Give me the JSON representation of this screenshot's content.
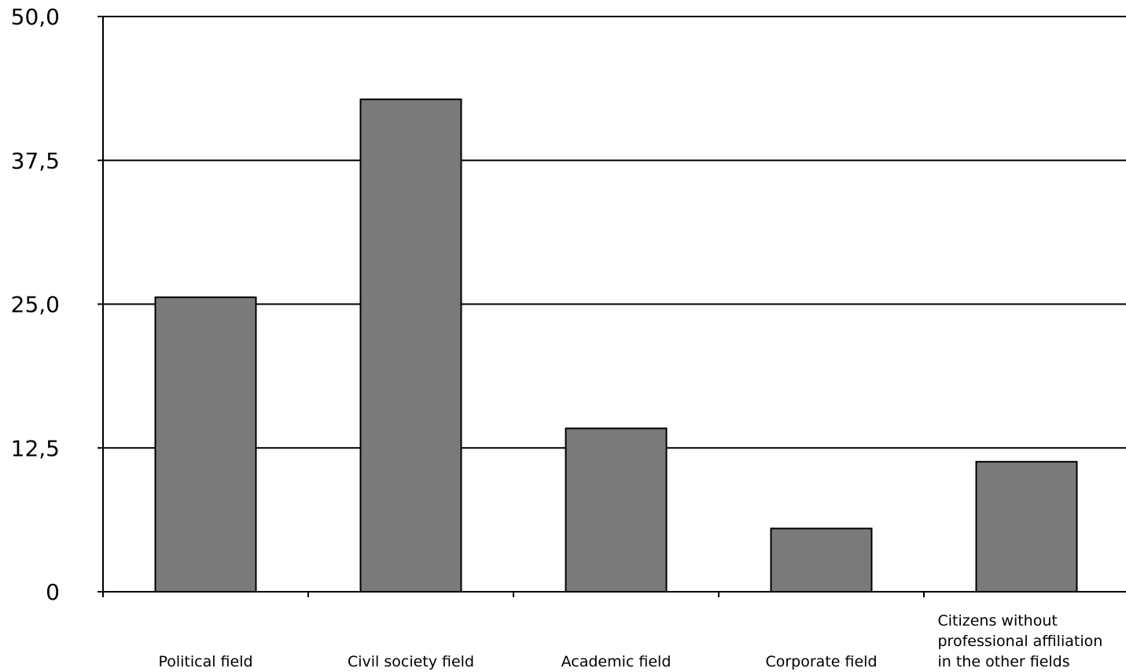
{
  "chart_data": {
    "type": "bar",
    "title": "",
    "xlabel": "",
    "ylabel": "",
    "categories": [
      "Political field",
      "Civil society field",
      "Academic field",
      "Corporate field",
      "Citizens without professional affiliation in the other fields"
    ],
    "category_label_lines": [
      [
        "Political field"
      ],
      [
        "Civil society field"
      ],
      [
        "Academic field"
      ],
      [
        "Corporate field"
      ],
      [
        "Citizens without",
        "professional affiliation",
        "in the other fields"
      ]
    ],
    "values": [
      25.6,
      42.8,
      14.2,
      5.5,
      11.3
    ],
    "ylim": [
      0,
      50
    ],
    "yticks": [
      0,
      12.5,
      25,
      37.5,
      50
    ],
    "ytick_labels": [
      "0",
      "12,5",
      "25,0",
      "37,5",
      "50,0"
    ],
    "grid": true,
    "bar_color": "#7a7a7a",
    "edge_color": "#000000"
  }
}
